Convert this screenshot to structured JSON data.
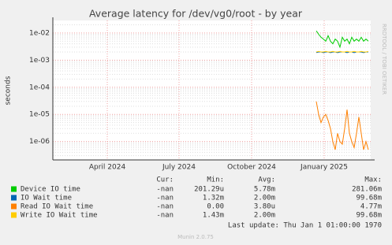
{
  "chart_data": {
    "type": "line",
    "title": "Average latency for /dev/vg0/root - by year",
    "y_label": "seconds",
    "side_text": "RRDTOOL / TOBI OETIKER",
    "log_scale": true,
    "grid": true,
    "ylim": [
      2.1e-07,
      0.029
    ],
    "yticks": [
      {
        "value": 0.01,
        "label": "1e-02"
      },
      {
        "value": 0.001,
        "label": "1e-03"
      },
      {
        "value": 0.0001,
        "label": "1e-04"
      },
      {
        "value": 1e-05,
        "label": "1e-05"
      },
      {
        "value": 1e-06,
        "label": "1e-06"
      }
    ],
    "xlim": [
      "2024-01-23",
      "2025-03-01"
    ],
    "xticks": [
      {
        "value": "2024-04-01",
        "label": "April 2024"
      },
      {
        "value": "2024-07-01",
        "label": "July 2024"
      },
      {
        "value": "2024-10-01",
        "label": "October 2024"
      },
      {
        "value": "2025-01-01",
        "label": "January 2025"
      }
    ],
    "x": [
      "2024-12-22",
      "2024-12-25",
      "2024-12-28",
      "2024-12-31",
      "2025-01-03",
      "2025-01-06",
      "2025-01-09",
      "2025-01-12",
      "2025-01-15",
      "2025-01-18",
      "2025-01-21",
      "2025-01-24",
      "2025-01-27",
      "2025-01-30",
      "2025-02-02",
      "2025-02-05",
      "2025-02-08",
      "2025-02-11",
      "2025-02-14",
      "2025-02-17",
      "2025-02-20",
      "2025-02-23",
      "2025-02-26"
    ],
    "legend_columns": [
      "Cur:",
      "Min:",
      "Avg:",
      "Max:"
    ],
    "series": [
      {
        "name": "Device IO time",
        "color": "#00cc00",
        "stats": [
          "-nan",
          "201.29u",
          "5.78m",
          "281.06m"
        ],
        "values": [
          0.012,
          0.009,
          0.007,
          0.006,
          0.005,
          0.008,
          0.005,
          0.004,
          0.006,
          0.005,
          0.003,
          0.007,
          0.005,
          0.006,
          0.004,
          0.007,
          0.005,
          0.006,
          0.005,
          0.007,
          0.005,
          0.006,
          0.005
        ]
      },
      {
        "name": "IO Wait time",
        "color": "#0066b3",
        "stats": [
          "-nan",
          "1.32m",
          "2.00m",
          "99.68m"
        ],
        "values": [
          0.0019,
          0.002,
          0.002,
          0.0019,
          0.002,
          0.002,
          0.0019,
          0.002,
          0.002,
          0.0019,
          0.002,
          0.002,
          0.002,
          0.0019,
          0.002,
          0.002,
          0.0019,
          0.002,
          0.002,
          0.002,
          0.0019,
          0.002,
          0.002
        ]
      },
      {
        "name": "Read IO Wait time",
        "color": "#ff8000",
        "stats": [
          "-nan",
          "0.00",
          "3.80u",
          "4.77m"
        ],
        "values": [
          3e-05,
          1e-05,
          5e-06,
          8e-06,
          1e-05,
          6e-06,
          3e-06,
          1e-06,
          5e-07,
          2e-06,
          1e-06,
          8e-07,
          3e-06,
          1.5e-05,
          2e-06,
          1e-06,
          6e-07,
          2e-06,
          8e-06,
          2e-06,
          5e-07,
          1e-06,
          5e-07
        ]
      },
      {
        "name": "Write IO Wait time",
        "color": "#ffcc00",
        "stats": [
          "-nan",
          "1.43m",
          "2.00m",
          "99.68m"
        ],
        "values": [
          0.002,
          0.0021,
          0.002,
          0.002,
          0.0021,
          0.002,
          0.002,
          0.0021,
          0.002,
          0.002,
          0.0021,
          0.002,
          0.002,
          0.0021,
          0.002,
          0.002,
          0.0021,
          0.002,
          0.002,
          0.0021,
          0.002,
          0.002,
          0.0021
        ]
      }
    ],
    "last_update": "Last update: Thu Jan  1 01:00:00 1970",
    "footer": "Munin 2.0.75"
  }
}
